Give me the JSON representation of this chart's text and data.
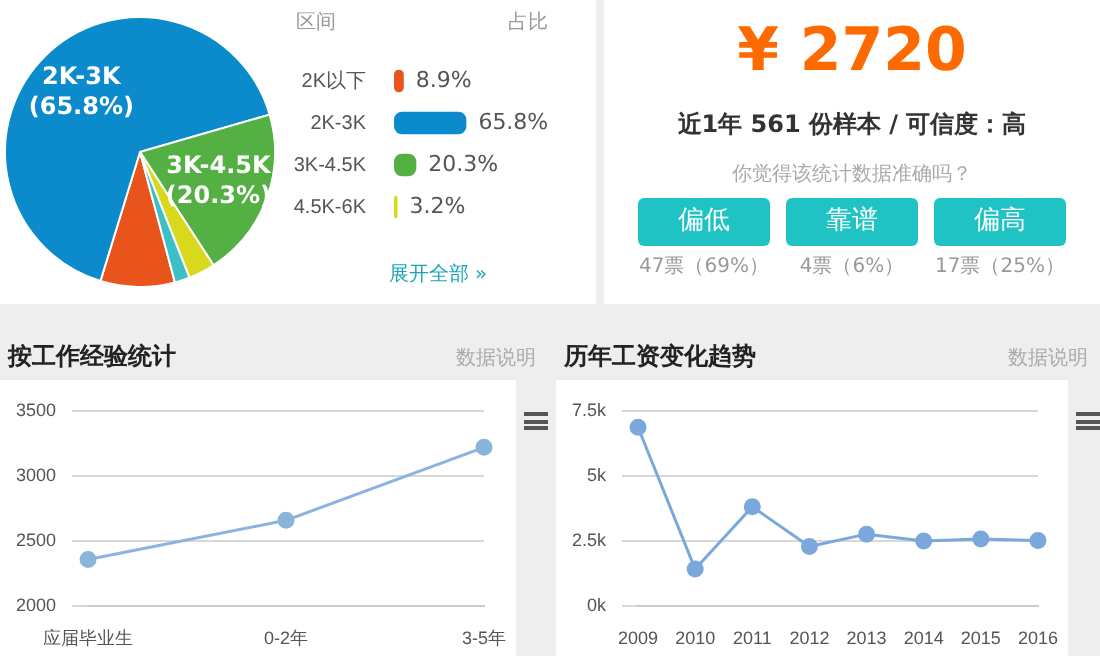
{
  "chart_data": [
    {
      "type": "pie",
      "categories": [
        null,
        "2K-3K",
        "3K-4.5K",
        null,
        null
      ],
      "values": [
        8.9,
        65.8,
        20.3,
        3.2,
        1.8
      ],
      "colors": [
        "#e8541c",
        "#0b8bcc",
        "#55b044",
        "#d8d81c",
        "#3cc0c8"
      ],
      "value_labels": [
        null,
        "(65.8%)",
        "(20.3%)",
        null,
        null
      ]
    },
    {
      "type": "bar",
      "orientation": "horizontal",
      "ylabel": "区间",
      "categories": [
        "2K以下",
        "2K-3K",
        "3K-4.5K",
        "4.5K-6K"
      ],
      "values": [
        8.9,
        65.8,
        20.3,
        3.2
      ],
      "colors": [
        "#e8541c",
        "#0b8bcc",
        "#55b044",
        "#d8d81c"
      ],
      "value_labels": [
        "8.9%",
        "65.8%",
        "20.3%",
        "3.2%"
      ],
      "annotations": [
        "占比",
        "展开全部 »"
      ]
    },
    {
      "type": "other",
      "title": "¥ 2720",
      "subtitle": "近1年 561 份样本 / 可信度：高",
      "annotations": [
        "你觉得该统计数据准确吗？",
        "偏低",
        "靠谱",
        "偏高",
        "47票（69%）",
        "4票（6%）",
        "17票（25%）"
      ]
    },
    {
      "type": "line",
      "title": "按工作经验统计",
      "categories": [
        "应届毕业生",
        "0-2年",
        "3-5年"
      ],
      "series": [
        {
          "color": "#8ab4dc",
          "values": [
            2360,
            2660,
            3220
          ]
        }
      ],
      "ylim": [
        2000,
        3500
      ],
      "yticks": [
        2000,
        2500,
        3000,
        3500
      ],
      "grid": "y",
      "marker": "circle",
      "annotations": [
        "数据说明"
      ]
    },
    {
      "type": "line",
      "title": "历年工资变化趋势",
      "categories": [
        "2009",
        "2010",
        "2011",
        "2012",
        "2013",
        "2014",
        "2015",
        "2016"
      ],
      "series": [
        {
          "color": "#7aa8dc",
          "values": [
            6870,
            1430,
            3820,
            2300,
            2770,
            2510,
            2580,
            2530
          ]
        }
      ],
      "ylim": [
        0,
        7500
      ],
      "yticks": [
        {
          "value": 0,
          "label": "0k"
        },
        {
          "value": 2500,
          "label": "2.5k"
        },
        {
          "value": 5000,
          "label": "5k"
        },
        {
          "value": 7500,
          "label": "7.5k"
        }
      ],
      "grid": "y",
      "marker": "circle",
      "annotations": [
        "数据说明"
      ]
    }
  ]
}
